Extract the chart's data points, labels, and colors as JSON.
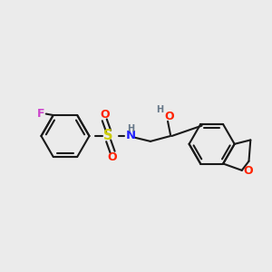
{
  "bg_color": "#ebebeb",
  "bond_color": "#1a1a1a",
  "bond_width": 1.5,
  "atom_colors": {
    "F": "#cc44cc",
    "O": "#ff2200",
    "S": "#cccc00",
    "N": "#2222ff",
    "H": "#667788",
    "C": "#1a1a1a"
  },
  "font_size_atom": 8.5,
  "fig_size": [
    3.0,
    3.0
  ],
  "dpi": 100
}
